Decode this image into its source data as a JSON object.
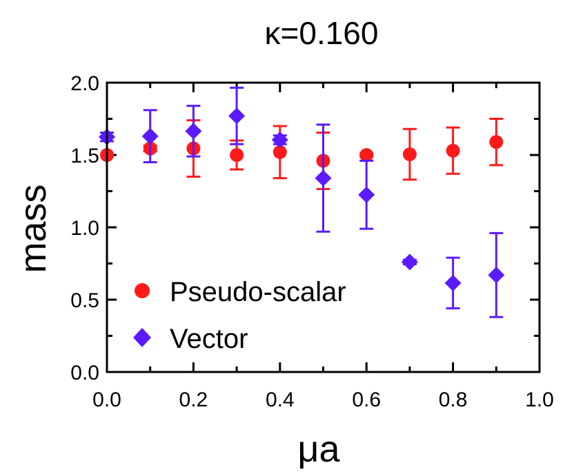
{
  "chart_data": {
    "type": "scatter",
    "title": "κ=0.160",
    "xlabel": "μa",
    "ylabel": "mass",
    "xlim": [
      0.0,
      1.0
    ],
    "ylim": [
      0.0,
      2.0
    ],
    "x_major_ticks": [
      0.0,
      0.2,
      0.4,
      0.6,
      0.8,
      1.0
    ],
    "x_minor_ticks": [
      0.1,
      0.3,
      0.5,
      0.7,
      0.9
    ],
    "y_major_ticks": [
      0.0,
      0.5,
      1.0,
      1.5,
      2.0
    ],
    "y_minor_ticks": [
      0.25,
      0.75,
      1.25,
      1.75
    ],
    "x_tick_labels": [
      "0.0",
      "0.2",
      "0.4",
      "0.6",
      "0.8",
      "1.0"
    ],
    "y_tick_labels": [
      "0.0",
      "0.5",
      "1.0",
      "1.5",
      "2.0"
    ],
    "legend_position": "bottom-left",
    "series": [
      {
        "name": "Pseudo-scalar",
        "marker": "circle",
        "color": "#ff1a1a",
        "points": [
          {
            "x": 0.0,
            "y": 1.5,
            "err": 0.0
          },
          {
            "x": 0.1,
            "y": 1.545,
            "err": 0.02
          },
          {
            "x": 0.2,
            "y": 1.545,
            "err": 0.195
          },
          {
            "x": 0.3,
            "y": 1.5,
            "err": 0.1
          },
          {
            "x": 0.4,
            "y": 1.52,
            "err": 0.18
          },
          {
            "x": 0.5,
            "y": 1.46,
            "err": 0.195
          },
          {
            "x": 0.6,
            "y": 1.5,
            "err": 0.01
          },
          {
            "x": 0.7,
            "y": 1.505,
            "err": 0.175
          },
          {
            "x": 0.8,
            "y": 1.53,
            "err": 0.16
          },
          {
            "x": 0.9,
            "y": 1.59,
            "err": 0.16
          }
        ]
      },
      {
        "name": "Vector",
        "marker": "diamond",
        "color": "#5b1aff",
        "points": [
          {
            "x": 0.0,
            "y": 1.625,
            "err": 0.03
          },
          {
            "x": 0.1,
            "y": 1.63,
            "err": 0.18
          },
          {
            "x": 0.2,
            "y": 1.665,
            "err": 0.175
          },
          {
            "x": 0.3,
            "y": 1.77,
            "err": 0.195
          },
          {
            "x": 0.4,
            "y": 1.605,
            "err": 0.03
          },
          {
            "x": 0.5,
            "y": 1.34,
            "err": 0.37
          },
          {
            "x": 0.6,
            "y": 1.225,
            "err": 0.235
          },
          {
            "x": 0.7,
            "y": 0.76,
            "err": 0.015
          },
          {
            "x": 0.8,
            "y": 0.615,
            "err": 0.175
          },
          {
            "x": 0.9,
            "y": 0.67,
            "err": 0.29
          }
        ]
      }
    ]
  }
}
